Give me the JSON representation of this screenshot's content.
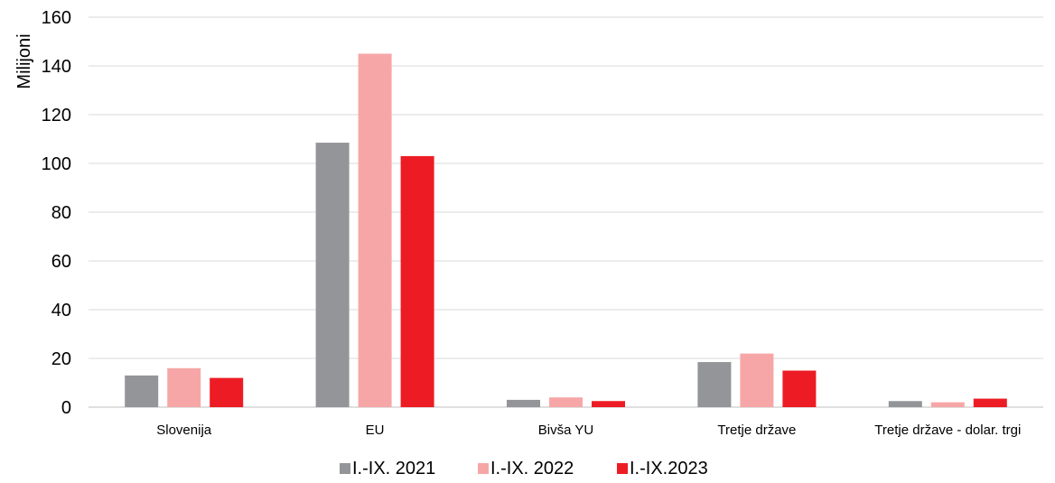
{
  "chart_data": {
    "type": "bar",
    "ylabel": "Milijoni",
    "ylim": [
      0,
      160
    ],
    "yticks": [
      "0",
      "20",
      "40",
      "60",
      "80",
      "100",
      "120",
      "140",
      "160"
    ],
    "categories": [
      "Slovenija",
      "EU",
      "Bivša YU",
      "Tretje države",
      "Tretje države - dolar. trgi"
    ],
    "series": [
      {
        "name": "I.-IX. 2021",
        "color": "#939598",
        "values": [
          13,
          108.5,
          3,
          18.5,
          2.5
        ]
      },
      {
        "name": "I.-IX. 2022",
        "color": "#f7a6a7",
        "values": [
          16,
          145,
          4,
          22,
          2
        ]
      },
      {
        "name": "I.-IX.2023",
        "color": "#ed1c24",
        "values": [
          12,
          103,
          2.5,
          15,
          3.5
        ]
      }
    ],
    "grid": true,
    "legend": "bottom"
  }
}
